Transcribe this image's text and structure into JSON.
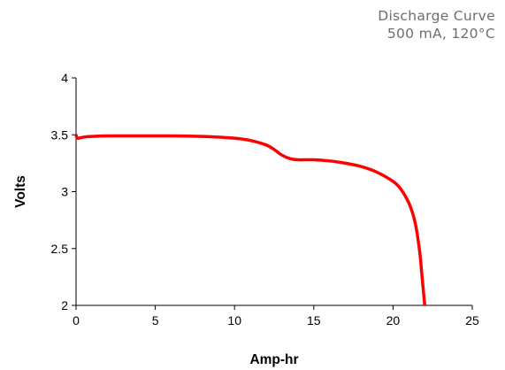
{
  "header": {
    "title": "Discharge Curve",
    "subtitle": "500 mA, 120°C"
  },
  "chart_data": {
    "type": "line",
    "title": "Discharge Curve",
    "subtitle": "500 mA, 120°C",
    "xlabel": "Amp-hr",
    "ylabel": "Volts",
    "xlim": [
      0,
      25
    ],
    "ylim": [
      2,
      4
    ],
    "xticks": [
      0,
      5,
      10,
      15,
      20,
      25
    ],
    "yticks": [
      2,
      2.5,
      3,
      3.5,
      4
    ],
    "xtick_labels": [
      "0",
      "5",
      "10",
      "15",
      "20",
      "25"
    ],
    "ytick_labels": [
      "2",
      "2.5",
      "3",
      "3.5",
      "4"
    ],
    "grid": false,
    "legend": "none",
    "series": [
      {
        "color": "#ff0000",
        "x": [
          0,
          0.1,
          0.5,
          1,
          2,
          4,
          6,
          8,
          10,
          11,
          12,
          12.5,
          13,
          13.5,
          14,
          15,
          16,
          17,
          18,
          19,
          20,
          20.5,
          21,
          21.3,
          21.5,
          21.7,
          21.8,
          21.9,
          22.0
        ],
        "y": [
          3.5,
          3.47,
          3.48,
          3.485,
          3.49,
          3.49,
          3.49,
          3.485,
          3.47,
          3.45,
          3.41,
          3.37,
          3.32,
          3.29,
          3.28,
          3.28,
          3.27,
          3.25,
          3.22,
          3.17,
          3.09,
          3.02,
          2.9,
          2.78,
          2.65,
          2.45,
          2.3,
          2.15,
          2.0
        ]
      }
    ]
  }
}
